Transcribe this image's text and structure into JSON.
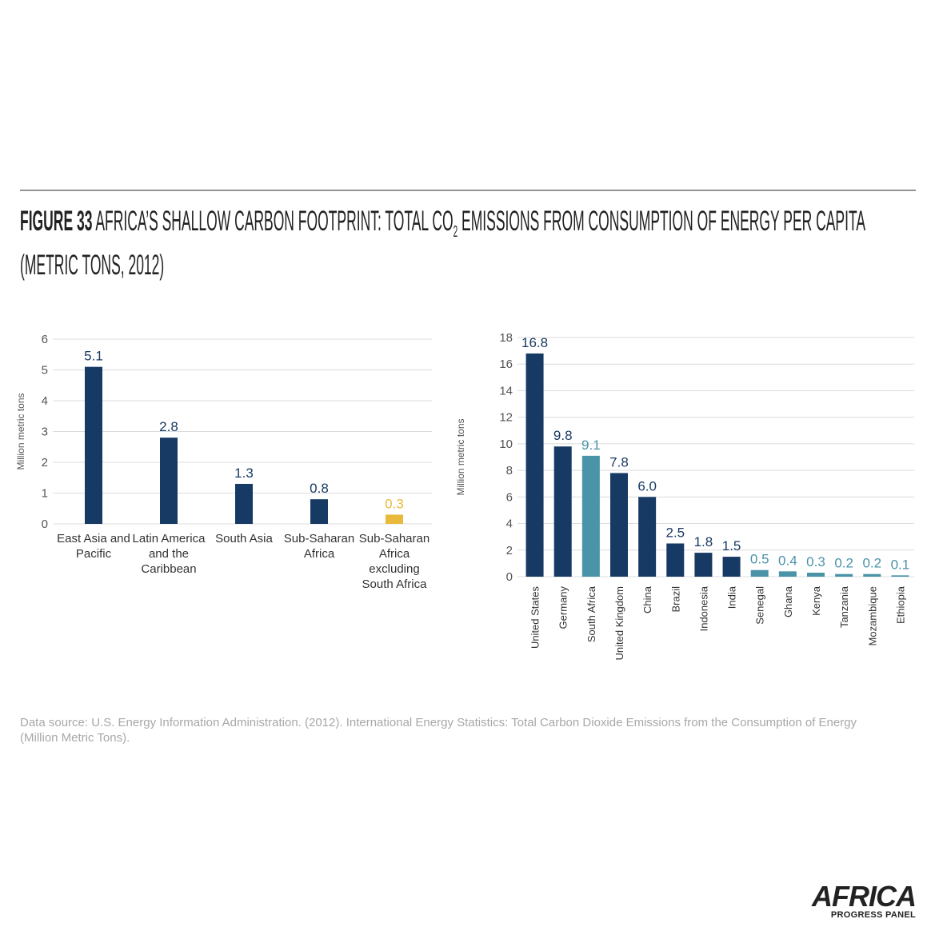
{
  "figure_label": "FIGURE 33",
  "title_before_subscript": "AFRICA’S SHALLOW CARBON FOOTPRINT: TOTAL CO",
  "title_subscript": "2",
  "title_after_subscript": " EMISSIONS FROM CONSUMPTION OF ENERGY PER CAPITA (METRIC TONS, 2012)",
  "chart_data": [
    {
      "type": "bar",
      "ylabel": "Million metric tons",
      "categories": [
        "East Asia and Pacific",
        "Latin America and the Caribbean",
        "South Asia",
        "Sub-Saharan Africa",
        "Sub-Saharan Africa excluding South Africa"
      ],
      "values": [
        5.1,
        2.8,
        1.3,
        0.8,
        0.3
      ],
      "colors": [
        "#173a64",
        "#173a64",
        "#173a64",
        "#173a64",
        "#e9b93c"
      ],
      "ylim": [
        0,
        6
      ],
      "yticks": [
        0,
        1,
        2,
        3,
        4,
        5,
        6
      ],
      "grid": true
    },
    {
      "type": "bar",
      "ylabel": "Million metric tons",
      "categories": [
        "United States",
        "Germany",
        "South Africa",
        "United Kingdom",
        "China",
        "Brazil",
        "Indonesia",
        "India",
        "Senegal",
        "Ghana",
        "Kenya",
        "Tanzania",
        "Mozambique",
        "Ethiopia"
      ],
      "values": [
        16.8,
        9.8,
        9.1,
        7.8,
        6.0,
        2.5,
        1.8,
        1.5,
        0.5,
        0.4,
        0.3,
        0.2,
        0.2,
        0.1
      ],
      "value_labels": [
        "16.8",
        "9.8",
        "9.1",
        "7.8",
        "6.0",
        "2.5",
        "1.8",
        "1.5",
        "0.5",
        "0.4",
        "0.3",
        "0.2",
        "0.2",
        "0.1"
      ],
      "colors": [
        "#173a64",
        "#173a64",
        "#4a93a8",
        "#173a64",
        "#173a64",
        "#173a64",
        "#173a64",
        "#173a64",
        "#4a93a8",
        "#4a93a8",
        "#4a93a8",
        "#4a93a8",
        "#4a93a8",
        "#4a93a8"
      ],
      "ylim": [
        0,
        18
      ],
      "yticks": [
        0,
        2,
        4,
        6,
        8,
        10,
        12,
        14,
        16,
        18
      ],
      "grid": true
    }
  ],
  "source": "Data source: U.S. Energy Information Administration. (2012). International Energy Statistics: Total Carbon Dioxide Emissions from the Consumption of Energy (Million Metric Tons).",
  "logo": {
    "name": "AFRICA",
    "subtitle": "PROGRESS PANEL"
  }
}
